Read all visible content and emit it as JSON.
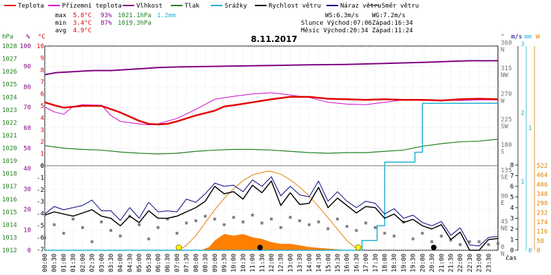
{
  "chart_data": {
    "type": "line",
    "title": "8.11.2017",
    "legend": [
      {
        "name": "Teplota",
        "color": "#e00000"
      },
      {
        "name": "Přízemní teplota",
        "color": "#d000d0"
      },
      {
        "name": "Vlhkost",
        "color": "#800080"
      },
      {
        "name": "Tlak",
        "color": "#208020"
      },
      {
        "name": "Srážky",
        "color": "#20b0d0"
      },
      {
        "name": "Rychlost větru",
        "color": "#000000"
      },
      {
        "name": "Náraz větru",
        "color": "#000080"
      },
      {
        "name": "Směr větru",
        "color": "#707070"
      }
    ],
    "stats": {
      "rows": [
        {
          "label": "max",
          "temp": "5.8°C",
          "hum": "93%",
          "press": "1021.1hPa",
          "rain": "1.2mm"
        },
        {
          "label": "min",
          "temp": "3.4°C",
          "hum": "87%",
          "press": "1019.3hPa",
          "rain": ""
        },
        {
          "label": "avg",
          "temp": "4.9°C",
          "hum": "",
          "press": "",
          "rain": ""
        }
      ],
      "ws": "WS:6.3m/s",
      "wg": "WG:7.2m/s",
      "sun": "Slunce Východ:07:06",
      "sunset": "Západ:16:34",
      "moon": "Měsíc  Východ:20:34",
      "moonset": "Západ:11:24"
    },
    "axes": {
      "hpa": {
        "title": "hPa",
        "ticks": [
          "1012",
          "1013",
          "1014",
          "1015",
          "1016",
          "1017",
          "1018",
          "1019",
          "1020",
          "1021",
          "1022",
          "1023",
          "1024",
          "1025",
          "1026",
          "1027",
          "1028"
        ]
      },
      "pct": {
        "title": "%",
        "ticks": [
          "0",
          "10",
          "20",
          "30",
          "40",
          "50",
          "60",
          "70",
          "80",
          "90",
          "100"
        ]
      },
      "temp_upper": {
        "title": "°C",
        "ticks": [
          "0",
          "1",
          "2",
          "3",
          "4",
          "5",
          "6",
          "7",
          "8",
          "9",
          "10"
        ]
      },
      "temp_lower": {
        "ticks": [
          "-7",
          "-6",
          "-5",
          "-4",
          "-3",
          "-2",
          "-1",
          "0"
        ]
      },
      "dir": {
        "title": "°",
        "ticks": [
          {
            "deg": "0",
            "dir": "N"
          },
          {
            "deg": "45",
            "dir": "NE"
          },
          {
            "deg": "90",
            "dir": "E"
          },
          {
            "deg": "135",
            "dir": "SE"
          },
          {
            "deg": "180",
            "dir": "S"
          },
          {
            "deg": "225",
            "dir": "SW"
          },
          {
            "deg": "270",
            "dir": "W"
          },
          {
            "deg": "315",
            "dir": "NW"
          },
          {
            "deg": "360",
            "dir": "N"
          }
        ]
      },
      "ms": {
        "title": "m/s",
        "ticks": [
          "0",
          "1",
          "2",
          "3",
          "4",
          "5",
          "6",
          "7",
          "8"
        ]
      },
      "ms_upper": [
        "1",
        "2",
        "3"
      ],
      "mm": {
        "title": "mm",
        "ticks": [
          "0",
          "1"
        ]
      },
      "w": {
        "title": "W",
        "ticks": [
          "0",
          "58",
          "116",
          "174",
          "232",
          "290",
          "348",
          "406",
          "464",
          "522"
        ]
      },
      "time_ticks": [
        "00:00",
        "00:30",
        "01:00",
        "01:30",
        "02:00",
        "02:30",
        "03:00",
        "03:30",
        "04:00",
        "04:30",
        "05:00",
        "05:30",
        "06:00",
        "06:30",
        "07:00",
        "07:30",
        "08:00",
        "08:30",
        "09:00",
        "09:30",
        "10:00",
        "10:30",
        "11:00",
        "11:30",
        "12:00",
        "12:30",
        "13:00",
        "13:30",
        "14:00",
        "14:30",
        "15:00",
        "15:30",
        "16:00",
        "16:30",
        "17:00",
        "17:30",
        "18:00",
        "18:30",
        "19:00",
        "19:30",
        "20:00",
        "20:30",
        "21:00",
        "21:30",
        "22:00",
        "22:30",
        "23:00",
        "23:30"
      ],
      "xlabel": "čas"
    },
    "series": {
      "temperature": {
        "hours": [
          0,
          0.5,
          1,
          2,
          3,
          4,
          5,
          5.5,
          6,
          6.5,
          7,
          8,
          9,
          9.5,
          10,
          11,
          12,
          13,
          14,
          15,
          16,
          17,
          18,
          19,
          20,
          21,
          22,
          23,
          24
        ],
        "values": [
          5.3,
          5.05,
          4.85,
          5.0,
          5.0,
          4.45,
          3.75,
          3.5,
          3.45,
          3.5,
          3.7,
          4.2,
          4.6,
          4.95,
          5.05,
          5.3,
          5.55,
          5.75,
          5.75,
          5.6,
          5.55,
          5.5,
          5.55,
          5.5,
          5.5,
          5.45,
          5.55,
          5.6,
          5.55
        ]
      },
      "ground_temperature": {
        "hours": [
          0,
          0.5,
          1,
          1.5,
          2,
          3,
          3.5,
          4,
          5,
          5.5,
          6,
          7,
          8,
          9,
          10,
          11,
          12,
          13,
          14,
          15,
          16,
          17,
          18,
          19,
          20,
          21,
          22,
          23,
          24
        ],
        "values": [
          4.9,
          4.5,
          4.3,
          4.95,
          5.1,
          5.05,
          4.2,
          3.7,
          3.5,
          3.4,
          3.5,
          3.95,
          4.7,
          5.55,
          5.8,
          6.0,
          6.1,
          5.9,
          5.7,
          5.3,
          5.15,
          5.1,
          5.3,
          5.5,
          5.45,
          5.5,
          5.45,
          5.5,
          5.5
        ]
      },
      "humidity": {
        "hours": [
          0,
          0.6,
          1.6,
          2.6,
          3.5,
          4.3,
          5.2,
          6.0,
          7.2,
          8.5,
          10.0,
          12.0,
          14.0,
          16.0,
          18.0,
          20.0,
          21.5,
          22.5,
          24
        ],
        "values": [
          86,
          87,
          87.5,
          88,
          88,
          88.5,
          89,
          89.5,
          89.8,
          90,
          90.2,
          90.5,
          90.8,
          91,
          91.5,
          92,
          92.5,
          92.8,
          92.8
        ]
      },
      "pressure": {
        "hours": [
          0,
          1,
          2,
          3,
          4,
          5,
          6,
          7,
          8,
          9,
          10,
          11,
          12,
          13,
          14,
          15,
          16,
          17,
          18,
          19,
          20,
          21,
          22,
          23,
          24
        ],
        "values": [
          1020.2,
          1020.0,
          1019.9,
          1019.85,
          1019.7,
          1019.6,
          1019.55,
          1019.6,
          1019.75,
          1019.85,
          1019.9,
          1019.9,
          1019.85,
          1019.75,
          1019.65,
          1019.6,
          1019.65,
          1019.65,
          1019.75,
          1019.85,
          1020.15,
          1020.35,
          1020.5,
          1020.55,
          1020.7
        ]
      },
      "rain_mm": {
        "hours": [
          0,
          16.8,
          16.8,
          17.6,
          17.6,
          18.0,
          18.0,
          19.6,
          19.6,
          20.0,
          20.0,
          20.9,
          20.9,
          24
        ],
        "values": [
          0,
          0,
          0.08,
          0.08,
          0.2,
          0.2,
          0.72,
          0.72,
          0.8,
          0.8,
          1.2,
          1.2,
          1.2,
          1.2
        ]
      },
      "wind_speed": {
        "hours": [
          0,
          0.5,
          1,
          1.5,
          2,
          2.5,
          3,
          3.5,
          4,
          4.5,
          5,
          5.5,
          6,
          6.5,
          7,
          7.5,
          8,
          8.5,
          9,
          9.5,
          10,
          10.5,
          11,
          11.5,
          12,
          12.5,
          13,
          13.5,
          14,
          14.5,
          15,
          15.5,
          16,
          16.5,
          17,
          17.5,
          18,
          18.5,
          19,
          19.5,
          20,
          20.5,
          21,
          21.5,
          22,
          22.5,
          23,
          23.5,
          24
        ],
        "values": [
          3.3,
          3.6,
          3.4,
          3.2,
          3.5,
          3.8,
          3.2,
          3.0,
          2.3,
          3.2,
          2.6,
          3.7,
          3.0,
          3.0,
          3.2,
          3.6,
          4.0,
          4.6,
          6.0,
          5.3,
          5.5,
          4.8,
          6.1,
          5.4,
          6.5,
          4.2,
          5.4,
          4.3,
          4.4,
          5.9,
          4.0,
          4.9,
          4.2,
          3.5,
          4.1,
          4.0,
          3.0,
          3.4,
          2.6,
          2.9,
          2.3,
          2.0,
          2.4,
          1.0,
          1.7,
          0.0,
          0.0,
          1.0,
          1.1
        ]
      },
      "wind_gust": {
        "hours": [
          0,
          0.5,
          1,
          1.5,
          2,
          2.5,
          3,
          3.5,
          4,
          4.5,
          5,
          5.5,
          6,
          6.5,
          7,
          7.5,
          8,
          8.5,
          9,
          9.5,
          10,
          10.5,
          11,
          11.5,
          12,
          12.5,
          13,
          13.5,
          14,
          14.5,
          15,
          15.5,
          16,
          16.5,
          17,
          17.5,
          18,
          18.5,
          19,
          19.5,
          20,
          20.5,
          21,
          21.5,
          22,
          22.5,
          23,
          23.5,
          24
        ],
        "values": [
          3.4,
          4.1,
          3.8,
          4.0,
          4.2,
          4.7,
          3.7,
          3.7,
          2.8,
          4.0,
          3.0,
          4.5,
          3.6,
          3.7,
          3.6,
          4.8,
          4.5,
          5.3,
          6.3,
          6.0,
          6.1,
          5.5,
          6.6,
          6.0,
          6.9,
          5.1,
          6.0,
          5.2,
          5.0,
          6.5,
          4.6,
          5.5,
          4.6,
          4.0,
          4.6,
          4.4,
          3.4,
          3.9,
          3.0,
          3.3,
          2.6,
          2.3,
          2.7,
          1.4,
          2.1,
          0.5,
          0.4,
          1.2,
          1.3
        ]
      },
      "wind_direction": {
        "hours": [
          0,
          0.5,
          1,
          1.5,
          2,
          2.5,
          3,
          3.5,
          4,
          4.5,
          5,
          5.5,
          6,
          6.5,
          7,
          7.5,
          8,
          8.5,
          9,
          9.5,
          10,
          10.5,
          11,
          11.5,
          12,
          12.5,
          13,
          13.5,
          14,
          14.5,
          15,
          15.5,
          16,
          16.5,
          17,
          17.5,
          18,
          18.5,
          19,
          19.5,
          20,
          20.5,
          21,
          21.5,
          22,
          22.5,
          23,
          23.5,
          24
        ],
        "values": [
          22,
          45,
          30,
          55,
          40,
          15,
          50,
          35,
          25,
          60,
          45,
          20,
          40,
          55,
          30,
          48,
          52,
          60,
          55,
          45,
          58,
          50,
          62,
          48,
          55,
          40,
          58,
          52,
          45,
          50,
          38,
          55,
          42,
          35,
          48,
          40,
          30,
          25,
          50,
          20,
          30,
          15,
          25,
          18,
          10,
          15,
          15,
          10,
          12
        ]
      },
      "solar_w": {
        "hours": [
          0,
          8.3,
          8.7,
          9.0,
          9.5,
          10.0,
          10.5,
          11.0,
          11.5,
          12.0,
          12.5,
          13.0,
          13.5,
          14.0,
          14.5,
          15.0,
          15.5,
          16.0,
          24
        ],
        "values": [
          0,
          0,
          20,
          60,
          100,
          90,
          100,
          80,
          70,
          50,
          40,
          40,
          30,
          20,
          15,
          10,
          5,
          0,
          0
        ]
      },
      "solar_theoretical_w": {
        "hours": [
          7.1,
          7.5,
          8.0,
          8.5,
          9.0,
          9.5,
          10.0,
          10.5,
          11.0,
          11.5,
          11.8,
          12.0,
          12.5,
          13.0,
          13.5,
          14.0,
          14.5,
          15.0,
          15.5,
          16.0,
          16.5,
          16.6
        ],
        "values": [
          0,
          30,
          90,
          170,
          250,
          320,
          380,
          430,
          465,
          480,
          488,
          486,
          470,
          435,
          390,
          335,
          270,
          200,
          130,
          60,
          10,
          0
        ]
      }
    },
    "markers": {
      "sun": [
        7.1,
        16.6
      ],
      "moon": [
        11.4,
        20.6
      ]
    }
  }
}
